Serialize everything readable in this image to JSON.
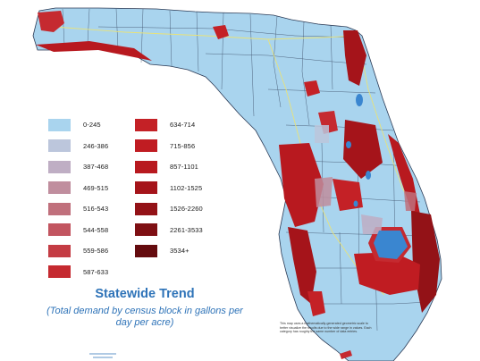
{
  "legend": {
    "title": "Statewide Trend",
    "subtitle": "(Total demand by census block in gallons per day per acre)",
    "classes": [
      {
        "label": "0-245",
        "color": "#a9d4ee"
      },
      {
        "label": "246-386",
        "color": "#bcc6dc"
      },
      {
        "label": "387-468",
        "color": "#bfaec4"
      },
      {
        "label": "469-515",
        "color": "#c08e9e"
      },
      {
        "label": "516-543",
        "color": "#c0707c"
      },
      {
        "label": "544-558",
        "color": "#c25560"
      },
      {
        "label": "559-586",
        "color": "#c43c44"
      },
      {
        "label": "587-633",
        "color": "#c52a30"
      },
      {
        "label": "634-714",
        "color": "#c42126"
      },
      {
        "label": "715-856",
        "color": "#c01c22"
      },
      {
        "label": "857-1101",
        "color": "#b8191f"
      },
      {
        "label": "1102-1525",
        "color": "#a5141a"
      },
      {
        "label": "1526-2260",
        "color": "#931217"
      },
      {
        "label": "2261-3533",
        "color": "#7e0f13"
      },
      {
        "label": "3534+",
        "color": "#640b0e"
      }
    ]
  },
  "note": "This map uses a mathematically-generated geometric scale to better visualize the results due to the wide range in values. Each category has roughly the same number of data entries.",
  "colors": {
    "water_background": "#ffffff",
    "land_base": "#a9d4ee",
    "county_lines": "#2b3a55",
    "lake": "#3a86d0",
    "road": "#e8e27a"
  }
}
